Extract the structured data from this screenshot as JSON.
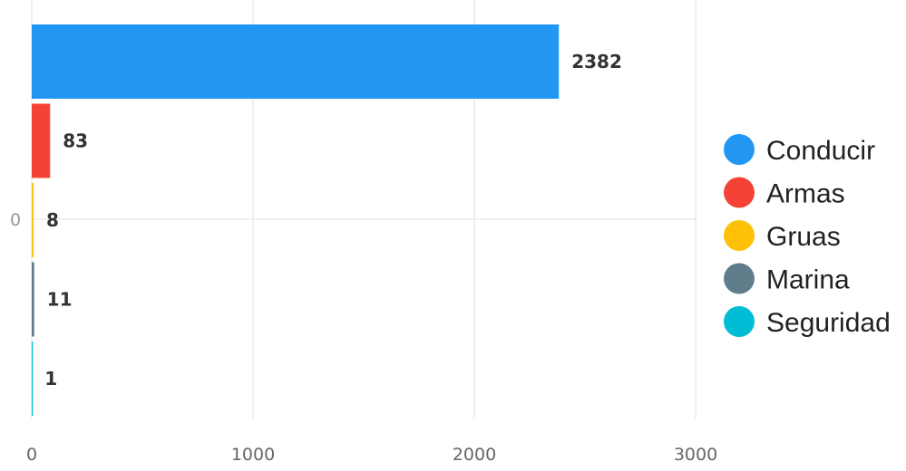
{
  "chart_data": {
    "type": "bar",
    "orientation": "horizontal",
    "categories": [
      "0"
    ],
    "series": [
      {
        "name": "Conducir",
        "values": [
          2382
        ],
        "color": "#2196F3"
      },
      {
        "name": "Armas",
        "values": [
          83
        ],
        "color": "#F44336"
      },
      {
        "name": "Gruas",
        "values": [
          8
        ],
        "color": "#FFC107"
      },
      {
        "name": "Marina",
        "values": [
          11
        ],
        "color": "#607D8B"
      },
      {
        "name": "Seguridad",
        "values": [
          1
        ],
        "color": "#00BCD4"
      }
    ],
    "x_ticks": [
      "0",
      "1000",
      "2000",
      "3000"
    ],
    "xlim": [
      0,
      3000
    ],
    "grid": true,
    "legend_position": "right",
    "data_labels": true,
    "gridline_color": "#ebebeb"
  }
}
